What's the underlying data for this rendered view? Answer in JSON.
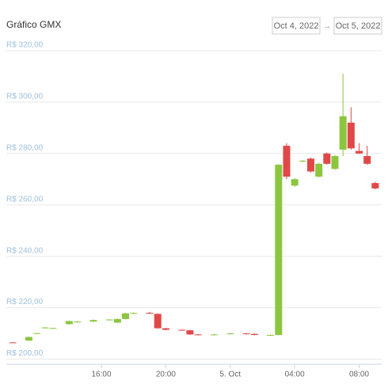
{
  "header": {
    "title": "Gráfico GMX",
    "date_from": "Oct 4, 2022",
    "range_separator": "→",
    "date_to": "Oct 5, 2022"
  },
  "chart_data": {
    "type": "candlestick",
    "up_color": "#8cc63f",
    "down_color": "#e04848",
    "ylim": [
      198,
      320
    ],
    "yticks": [
      {
        "value": 200,
        "label": "R$ 200,00"
      },
      {
        "value": 220,
        "label": "R$ 220,00"
      },
      {
        "value": 240,
        "label": "R$ 240,00"
      },
      {
        "value": 260,
        "label": "R$ 260,00"
      },
      {
        "value": 280,
        "label": "R$ 280,00"
      },
      {
        "value": 300,
        "label": "R$ 300,00"
      },
      {
        "value": 320,
        "label": "R$ 320,00"
      }
    ],
    "xlim": [
      10.1,
      33.4
    ],
    "xticks": [
      {
        "value": 16,
        "label": "16:00"
      },
      {
        "value": 20,
        "label": "20:00"
      },
      {
        "value": 24,
        "label": "5. Oct"
      },
      {
        "value": 28,
        "label": "04:00"
      },
      {
        "value": 32,
        "label": "08:00"
      }
    ],
    "grid": true,
    "x": [
      10.5,
      11.5,
      12,
      12.5,
      13,
      14,
      14.5,
      15.5,
      16.5,
      17,
      17.5,
      18,
      19,
      19.5,
      20,
      21,
      21.5,
      22,
      23,
      24,
      25,
      25.5,
      26.5,
      27,
      27.5,
      28,
      28.5,
      29,
      29.5,
      30,
      30.5,
      31,
      31.5,
      32,
      32.5,
      33
    ],
    "open": [
      206.5,
      207.2,
      210,
      212.2,
      212,
      213.6,
      214.5,
      214.6,
      215.2,
      214.2,
      215.6,
      217.8,
      218,
      217.6,
      212,
      211.4,
      211.2,
      209.6,
      209.4,
      209.8,
      210,
      209.8,
      209.2,
      209.4,
      283,
      267.5,
      277,
      278,
      271,
      280,
      274,
      281.5,
      292,
      281,
      279,
      268.5
    ],
    "high": [
      206.6,
      208.8,
      210.3,
      212.5,
      212.2,
      215,
      214.8,
      215.4,
      215.6,
      215.8,
      218,
      218.2,
      218.4,
      217.8,
      212.2,
      211.6,
      211.4,
      209.8,
      209.8,
      210.2,
      210.2,
      210,
      209.6,
      276,
      284,
      270.5,
      277.4,
      278.4,
      276.4,
      280.4,
      279.4,
      311,
      298,
      284,
      283,
      269
    ],
    "low": [
      206.3,
      207,
      209.8,
      212,
      211.8,
      213.4,
      214.2,
      214.4,
      215,
      214,
      215.4,
      217.6,
      217.6,
      211.8,
      211.2,
      211,
      209.4,
      209.2,
      209.2,
      209.6,
      209.6,
      209.2,
      209,
      209.2,
      270,
      267,
      276.6,
      272.6,
      270.6,
      275.6,
      273.6,
      279,
      281.5,
      279.8,
      275.6,
      266
    ],
    "close": [
      206.4,
      208.6,
      210.1,
      212.3,
      212.1,
      214.8,
      214.6,
      215.2,
      215.4,
      215.6,
      217.8,
      218,
      217.7,
      212,
      211.4,
      211.2,
      209.6,
      209.4,
      209.6,
      210,
      209.8,
      209.4,
      209.4,
      275.6,
      271,
      270,
      277.2,
      273,
      276,
      276,
      279,
      294.5,
      282,
      280,
      276,
      266.4
    ]
  }
}
